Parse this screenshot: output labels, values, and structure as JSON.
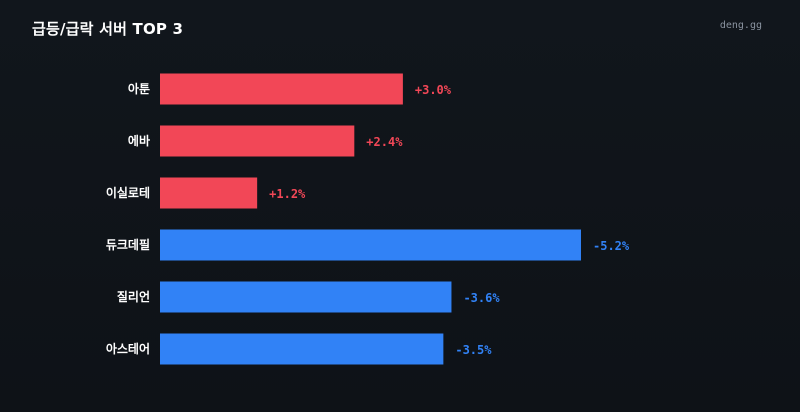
{
  "header": {
    "title": "급등/급락 서버 TOP 3",
    "brand": "deng.gg"
  },
  "colors": {
    "gain": "#f24757",
    "loss": "#3182f6",
    "background": "#11161c"
  },
  "chart_data": {
    "type": "bar",
    "orientation": "horizontal",
    "title": "급등/급락 서버 TOP 3",
    "categories": [
      "아툰",
      "에바",
      "이실로테",
      "듀크데필",
      "질리언",
      "아스테어"
    ],
    "values": [
      3.0,
      2.4,
      1.2,
      -5.2,
      -3.6,
      -3.5
    ],
    "value_labels": [
      "+3.0%",
      "+2.4%",
      "+1.2%",
      "-5.2%",
      "-3.6%",
      "-3.5%"
    ],
    "bar_magnitude": "absolute value",
    "xlim": [
      0,
      5.2
    ],
    "grid": false,
    "legend": "none"
  }
}
